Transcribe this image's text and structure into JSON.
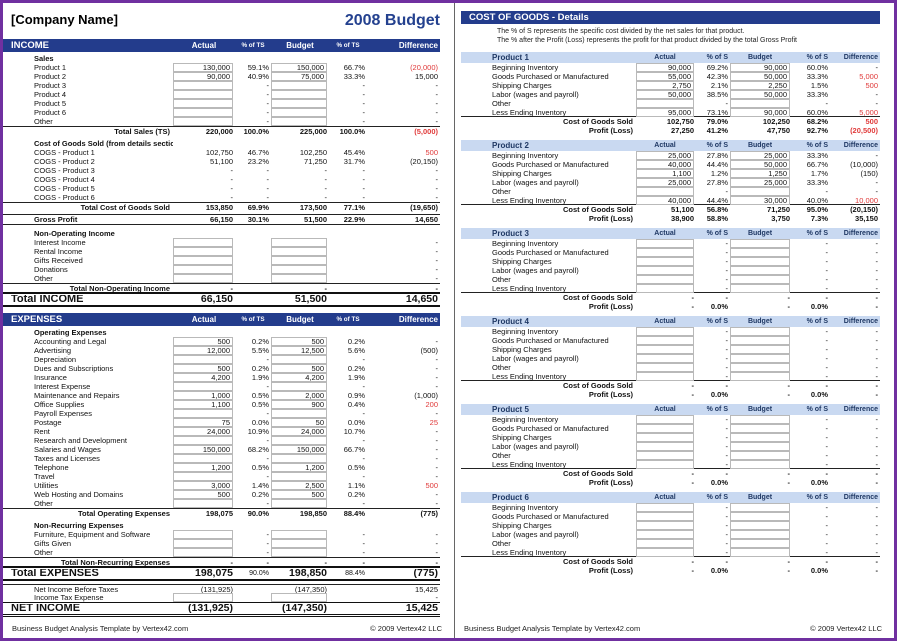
{
  "colors": {
    "section_bar": "#233c8c",
    "title_text": "#24418f",
    "product_header_bg": "#c9d9f1",
    "product_header_text": "#1f3864",
    "negative_value": "#e03a3a",
    "outer_border": "#7030a0"
  },
  "footer": {
    "credit": "Business Budget Analysis Template by Vertex42.com",
    "copyright": "© 2009 Vertex42 LLC"
  },
  "left": {
    "company": "[Company Name]",
    "title": "2008 Budget",
    "cols": [
      "Actual",
      "% of TS",
      "Budget",
      "% of TS",
      "Difference"
    ],
    "rows": [
      {
        "t": "bar",
        "l": "INCOME"
      },
      {
        "t": "sub",
        "l": "Sales"
      },
      {
        "t": "in",
        "l": "Product 1",
        "c": [
          "130,000",
          "59.1%",
          "150,000",
          "66.7%",
          "(20,000)"
        ],
        "r": [
          4
        ]
      },
      {
        "t": "in",
        "l": "Product 2",
        "c": [
          "90,000",
          "40.9%",
          "75,000",
          "33.3%",
          "15,000"
        ]
      },
      {
        "t": "in",
        "l": "Product 3",
        "c": [
          "",
          "-",
          "",
          "-",
          "-"
        ]
      },
      {
        "t": "in",
        "l": "Product 4",
        "c": [
          "",
          "-",
          "",
          "-",
          "-"
        ]
      },
      {
        "t": "in",
        "l": "Product 5",
        "c": [
          "",
          "-",
          "",
          "-",
          "-"
        ]
      },
      {
        "t": "in",
        "l": "Product 6",
        "c": [
          "",
          "-",
          "",
          "-",
          "-"
        ]
      },
      {
        "t": "in",
        "l": "Other",
        "c": [
          "",
          "-",
          "",
          "-",
          "-"
        ]
      },
      {
        "t": "tot",
        "l": "Total Sales (TS)",
        "c": [
          "220,000",
          "100.0%",
          "225,000",
          "100.0%",
          "(5,000)"
        ],
        "r": [
          4
        ]
      },
      {
        "t": "gap"
      },
      {
        "t": "sub",
        "l": "Cost of Goods Sold (from details section)"
      },
      {
        "t": "calc",
        "l": "COGS - Product 1",
        "c": [
          "102,750",
          "46.7%",
          "102,250",
          "45.4%",
          "500"
        ],
        "r": [
          4
        ]
      },
      {
        "t": "calc",
        "l": "COGS - Product 2",
        "c": [
          "51,100",
          "23.2%",
          "71,250",
          "31.7%",
          "(20,150)"
        ]
      },
      {
        "t": "calc",
        "l": "COGS - Product 3",
        "c": [
          "-",
          "-",
          "-",
          "-",
          "-"
        ]
      },
      {
        "t": "calc",
        "l": "COGS - Product 4",
        "c": [
          "-",
          "-",
          "-",
          "-",
          "-"
        ]
      },
      {
        "t": "calc",
        "l": "COGS - Product 5",
        "c": [
          "-",
          "-",
          "-",
          "-",
          "-"
        ]
      },
      {
        "t": "calc",
        "l": "COGS - Product 6",
        "c": [
          "-",
          "-",
          "-",
          "-",
          "-"
        ]
      },
      {
        "t": "tot",
        "l": "Total Cost of Goods Sold",
        "c": [
          "153,850",
          "69.9%",
          "173,500",
          "77.1%",
          "(19,650)"
        ]
      },
      {
        "t": "gap",
        "h": 3
      },
      {
        "t": "gross",
        "l": "Gross Profit",
        "c": [
          "66,150",
          "30.1%",
          "51,500",
          "22.9%",
          "14,650"
        ]
      },
      {
        "t": "gap"
      },
      {
        "t": "sub",
        "l": "Non-Operating Income"
      },
      {
        "t": "in",
        "l": "Interest Income",
        "c": [
          "",
          "",
          "",
          "",
          "-"
        ]
      },
      {
        "t": "in",
        "l": "Rental Income",
        "c": [
          "",
          "",
          "",
          "",
          "-"
        ]
      },
      {
        "t": "in",
        "l": "Gifts Received",
        "c": [
          "",
          "",
          "",
          "",
          "-"
        ]
      },
      {
        "t": "in",
        "l": "Donations",
        "c": [
          "",
          "",
          "",
          "",
          "-"
        ]
      },
      {
        "t": "in",
        "l": "Other",
        "c": [
          "",
          "",
          "",
          "",
          "-"
        ]
      },
      {
        "t": "tot",
        "l": "Total Non-Operating Income",
        "c": [
          "-",
          "",
          "-",
          "",
          "-"
        ]
      },
      {
        "t": "grand",
        "l": "Total INCOME",
        "c": [
          "66,150",
          "",
          "51,500",
          "",
          "14,650"
        ]
      },
      {
        "t": "gap",
        "h": 6
      },
      {
        "t": "bar",
        "l": "EXPENSES"
      },
      {
        "t": "sub",
        "l": "Operating Expenses"
      },
      {
        "t": "in",
        "l": "Accounting and Legal",
        "c": [
          "500",
          "0.2%",
          "500",
          "0.2%",
          "-"
        ]
      },
      {
        "t": "in",
        "l": "Advertising",
        "c": [
          "12,000",
          "5.5%",
          "12,500",
          "5.6%",
          "(500)"
        ]
      },
      {
        "t": "in",
        "l": "Depreciation",
        "c": [
          "",
          "-",
          "",
          "-",
          "-"
        ]
      },
      {
        "t": "in",
        "l": "Dues and Subscriptions",
        "c": [
          "500",
          "0.2%",
          "500",
          "0.2%",
          "-"
        ]
      },
      {
        "t": "in",
        "l": "Insurance",
        "c": [
          "4,200",
          "1.9%",
          "4,200",
          "1.9%",
          "-"
        ]
      },
      {
        "t": "in",
        "l": "Interest Expense",
        "c": [
          "",
          "-",
          "",
          "-",
          "-"
        ]
      },
      {
        "t": "in",
        "l": "Maintenance and Repairs",
        "c": [
          "1,000",
          "0.5%",
          "2,000",
          "0.9%",
          "(1,000)"
        ]
      },
      {
        "t": "in",
        "l": "Office Supplies",
        "c": [
          "1,100",
          "0.5%",
          "900",
          "0.4%",
          "200"
        ],
        "r": [
          4
        ]
      },
      {
        "t": "in",
        "l": "Payroll Expenses",
        "c": [
          "",
          "-",
          "",
          "-",
          "-"
        ]
      },
      {
        "t": "in",
        "l": "Postage",
        "c": [
          "75",
          "0.0%",
          "50",
          "0.0%",
          "25"
        ],
        "r": [
          4
        ]
      },
      {
        "t": "in",
        "l": "Rent",
        "c": [
          "24,000",
          "10.9%",
          "24,000",
          "10.7%",
          "-"
        ]
      },
      {
        "t": "in",
        "l": "Research and Development",
        "c": [
          "",
          "-",
          "",
          "-",
          "-"
        ]
      },
      {
        "t": "in",
        "l": "Salaries and Wages",
        "c": [
          "150,000",
          "68.2%",
          "150,000",
          "66.7%",
          "-"
        ]
      },
      {
        "t": "in",
        "l": "Taxes and Licenses",
        "c": [
          "",
          "-",
          "",
          "-",
          "-"
        ]
      },
      {
        "t": "in",
        "l": "Telephone",
        "c": [
          "1,200",
          "0.5%",
          "1,200",
          "0.5%",
          "-"
        ]
      },
      {
        "t": "in",
        "l": "Travel",
        "c": [
          "",
          "-",
          "",
          "-",
          "-"
        ]
      },
      {
        "t": "in",
        "l": "Utilities",
        "c": [
          "3,000",
          "1.4%",
          "2,500",
          "1.1%",
          "500"
        ],
        "r": [
          4
        ]
      },
      {
        "t": "in",
        "l": "Web Hosting and Domains",
        "c": [
          "500",
          "0.2%",
          "500",
          "0.2%",
          "-"
        ]
      },
      {
        "t": "in",
        "l": "Other",
        "c": [
          "",
          "-",
          "",
          "-",
          "-"
        ]
      },
      {
        "t": "tot",
        "l": "Total Operating Expenses",
        "c": [
          "198,075",
          "90.0%",
          "198,850",
          "88.4%",
          "(775)"
        ]
      },
      {
        "t": "gap"
      },
      {
        "t": "sub",
        "l": "Non-Recurring Expenses"
      },
      {
        "t": "in",
        "l": "Furniture, Equipment and Software",
        "c": [
          "",
          "-",
          "",
          "-",
          "-"
        ]
      },
      {
        "t": "in",
        "l": "Gifts Given",
        "c": [
          "",
          "-",
          "",
          "-",
          "-"
        ]
      },
      {
        "t": "in",
        "l": "Other",
        "c": [
          "",
          "-",
          "",
          "-",
          "-"
        ]
      },
      {
        "t": "tot",
        "l": "Total Non-Recurring Expenses",
        "c": [
          "-",
          "-",
          "-",
          "-",
          "-"
        ]
      },
      {
        "t": "grand",
        "l": "Total EXPENSES",
        "c": [
          "198,075",
          "90.0%",
          "198,850",
          "88.4%",
          "(775)"
        ]
      },
      {
        "t": "gap",
        "h": 3
      },
      {
        "t": "calc",
        "l": "Net Income Before Taxes",
        "c": [
          "(131,925)",
          "",
          "(147,350)",
          "",
          "15,425"
        ],
        "tl": true
      },
      {
        "t": "in",
        "l": "Income Tax Expense",
        "c": [
          "",
          "",
          "",
          "",
          "-"
        ]
      },
      {
        "t": "grand",
        "l": "NET INCOME",
        "c": [
          "(131,925)",
          "",
          "(147,350)",
          "",
          "15,425"
        ],
        "n": true
      }
    ]
  },
  "right": {
    "bar": "COST OF GOODS - Details",
    "note1": "The % of S represents the specific cost divided by the net sales for that product.",
    "note2": "The % after the Profit (Loss) represents the profit for that product divided by the total Gross Profit",
    "cols": [
      "Actual",
      "% of S",
      "Budget",
      "% of S",
      "Difference"
    ],
    "row_labels": [
      "Beginning Inventory",
      "Goods Purchased or Manufactured",
      "Shipping Charges",
      "Labor (wages and payroll)",
      "Other",
      "Less Ending Inventory"
    ],
    "cogs_label": "Cost of Goods Sold",
    "profit_label": "Profit (Loss)",
    "products": [
      {
        "name": "Product 1",
        "rows": [
          {
            "c": [
              "90,000",
              "69.2%",
              "90,000",
              "60.0%",
              "-"
            ]
          },
          {
            "c": [
              "55,000",
              "42.3%",
              "50,000",
              "33.3%",
              "5,000"
            ],
            "r": [
              4
            ]
          },
          {
            "c": [
              "2,750",
              "2.1%",
              "2,250",
              "1.5%",
              "500"
            ],
            "r": [
              4
            ]
          },
          {
            "c": [
              "50,000",
              "38.5%",
              "50,000",
              "33.3%",
              "-"
            ]
          },
          {
            "c": [
              "",
              "-",
              "",
              "-",
              "-"
            ]
          },
          {
            "c": [
              "95,000",
              "73.1%",
              "90,000",
              "60.0%",
              "5,000"
            ],
            "r": [
              4
            ]
          }
        ],
        "cogs": {
          "c": [
            "102,750",
            "79.0%",
            "102,250",
            "68.2%",
            "500"
          ],
          "r": [
            4
          ]
        },
        "profit": {
          "c": [
            "27,250",
            "41.2%",
            "47,750",
            "92.7%",
            "(20,500)"
          ],
          "r": [
            4
          ]
        }
      },
      {
        "name": "Product 2",
        "rows": [
          {
            "c": [
              "25,000",
              "27.8%",
              "25,000",
              "33.3%",
              "-"
            ]
          },
          {
            "c": [
              "40,000",
              "44.4%",
              "50,000",
              "66.7%",
              "(10,000)"
            ]
          },
          {
            "c": [
              "1,100",
              "1.2%",
              "1,250",
              "1.7%",
              "(150)"
            ]
          },
          {
            "c": [
              "25,000",
              "27.8%",
              "25,000",
              "33.3%",
              "-"
            ]
          },
          {
            "c": [
              "",
              "-",
              "",
              "-",
              "-"
            ]
          },
          {
            "c": [
              "40,000",
              "44.4%",
              "30,000",
              "40.0%",
              "10,000"
            ],
            "r": [
              4
            ]
          }
        ],
        "cogs": {
          "c": [
            "51,100",
            "56.8%",
            "71,250",
            "95.0%",
            "(20,150)"
          ]
        },
        "profit": {
          "c": [
            "38,900",
            "58.8%",
            "3,750",
            "7.3%",
            "35,150"
          ]
        }
      },
      {
        "name": "Product 3",
        "rows": [
          {
            "c": [
              "",
              "-",
              "",
              "-",
              "-"
            ]
          },
          {
            "c": [
              "",
              "-",
              "",
              "-",
              "-"
            ]
          },
          {
            "c": [
              "",
              "-",
              "",
              "-",
              "-"
            ]
          },
          {
            "c": [
              "",
              "-",
              "",
              "-",
              "-"
            ]
          },
          {
            "c": [
              "",
              "-",
              "",
              "-",
              "-"
            ]
          },
          {
            "c": [
              "",
              "-",
              "",
              "-",
              "-"
            ]
          }
        ],
        "cogs": {
          "c": [
            "-",
            "-",
            "-",
            "-",
            "-"
          ]
        },
        "profit": {
          "c": [
            "-",
            "0.0%",
            "-",
            "0.0%",
            "-"
          ]
        }
      },
      {
        "name": "Product 4",
        "rows": [
          {
            "c": [
              "",
              "-",
              "",
              "-",
              "-"
            ]
          },
          {
            "c": [
              "",
              "-",
              "",
              "-",
              "-"
            ]
          },
          {
            "c": [
              "",
              "-",
              "",
              "-",
              "-"
            ]
          },
          {
            "c": [
              "",
              "-",
              "",
              "-",
              "-"
            ]
          },
          {
            "c": [
              "",
              "-",
              "",
              "-",
              "-"
            ]
          },
          {
            "c": [
              "",
              "-",
              "",
              "-",
              "-"
            ]
          }
        ],
        "cogs": {
          "c": [
            "-",
            "-",
            "-",
            "-",
            "-"
          ]
        },
        "profit": {
          "c": [
            "-",
            "0.0%",
            "-",
            "0.0%",
            "-"
          ]
        }
      },
      {
        "name": "Product 5",
        "rows": [
          {
            "c": [
              "",
              "-",
              "",
              "-",
              "-"
            ]
          },
          {
            "c": [
              "",
              "-",
              "",
              "-",
              "-"
            ]
          },
          {
            "c": [
              "",
              "-",
              "",
              "-",
              "-"
            ]
          },
          {
            "c": [
              "",
              "-",
              "",
              "-",
              "-"
            ]
          },
          {
            "c": [
              "",
              "-",
              "",
              "-",
              "-"
            ]
          },
          {
            "c": [
              "",
              "-",
              "",
              "-",
              "-"
            ]
          }
        ],
        "cogs": {
          "c": [
            "-",
            "-",
            "-",
            "-",
            "-"
          ]
        },
        "profit": {
          "c": [
            "-",
            "0.0%",
            "-",
            "0.0%",
            "-"
          ]
        }
      },
      {
        "name": "Product 6",
        "rows": [
          {
            "c": [
              "",
              "-",
              "",
              "-",
              "-"
            ]
          },
          {
            "c": [
              "",
              "-",
              "",
              "-",
              "-"
            ]
          },
          {
            "c": [
              "",
              "-",
              "",
              "-",
              "-"
            ]
          },
          {
            "c": [
              "",
              "-",
              "",
              "-",
              "-"
            ]
          },
          {
            "c": [
              "",
              "-",
              "",
              "-",
              "-"
            ]
          },
          {
            "c": [
              "",
              "-",
              "",
              "-",
              "-"
            ]
          }
        ],
        "cogs": {
          "c": [
            "-",
            "-",
            "-",
            "-",
            "-"
          ]
        },
        "profit": {
          "c": [
            "-",
            "0.0%",
            "-",
            "0.0%",
            "-"
          ]
        }
      }
    ]
  }
}
